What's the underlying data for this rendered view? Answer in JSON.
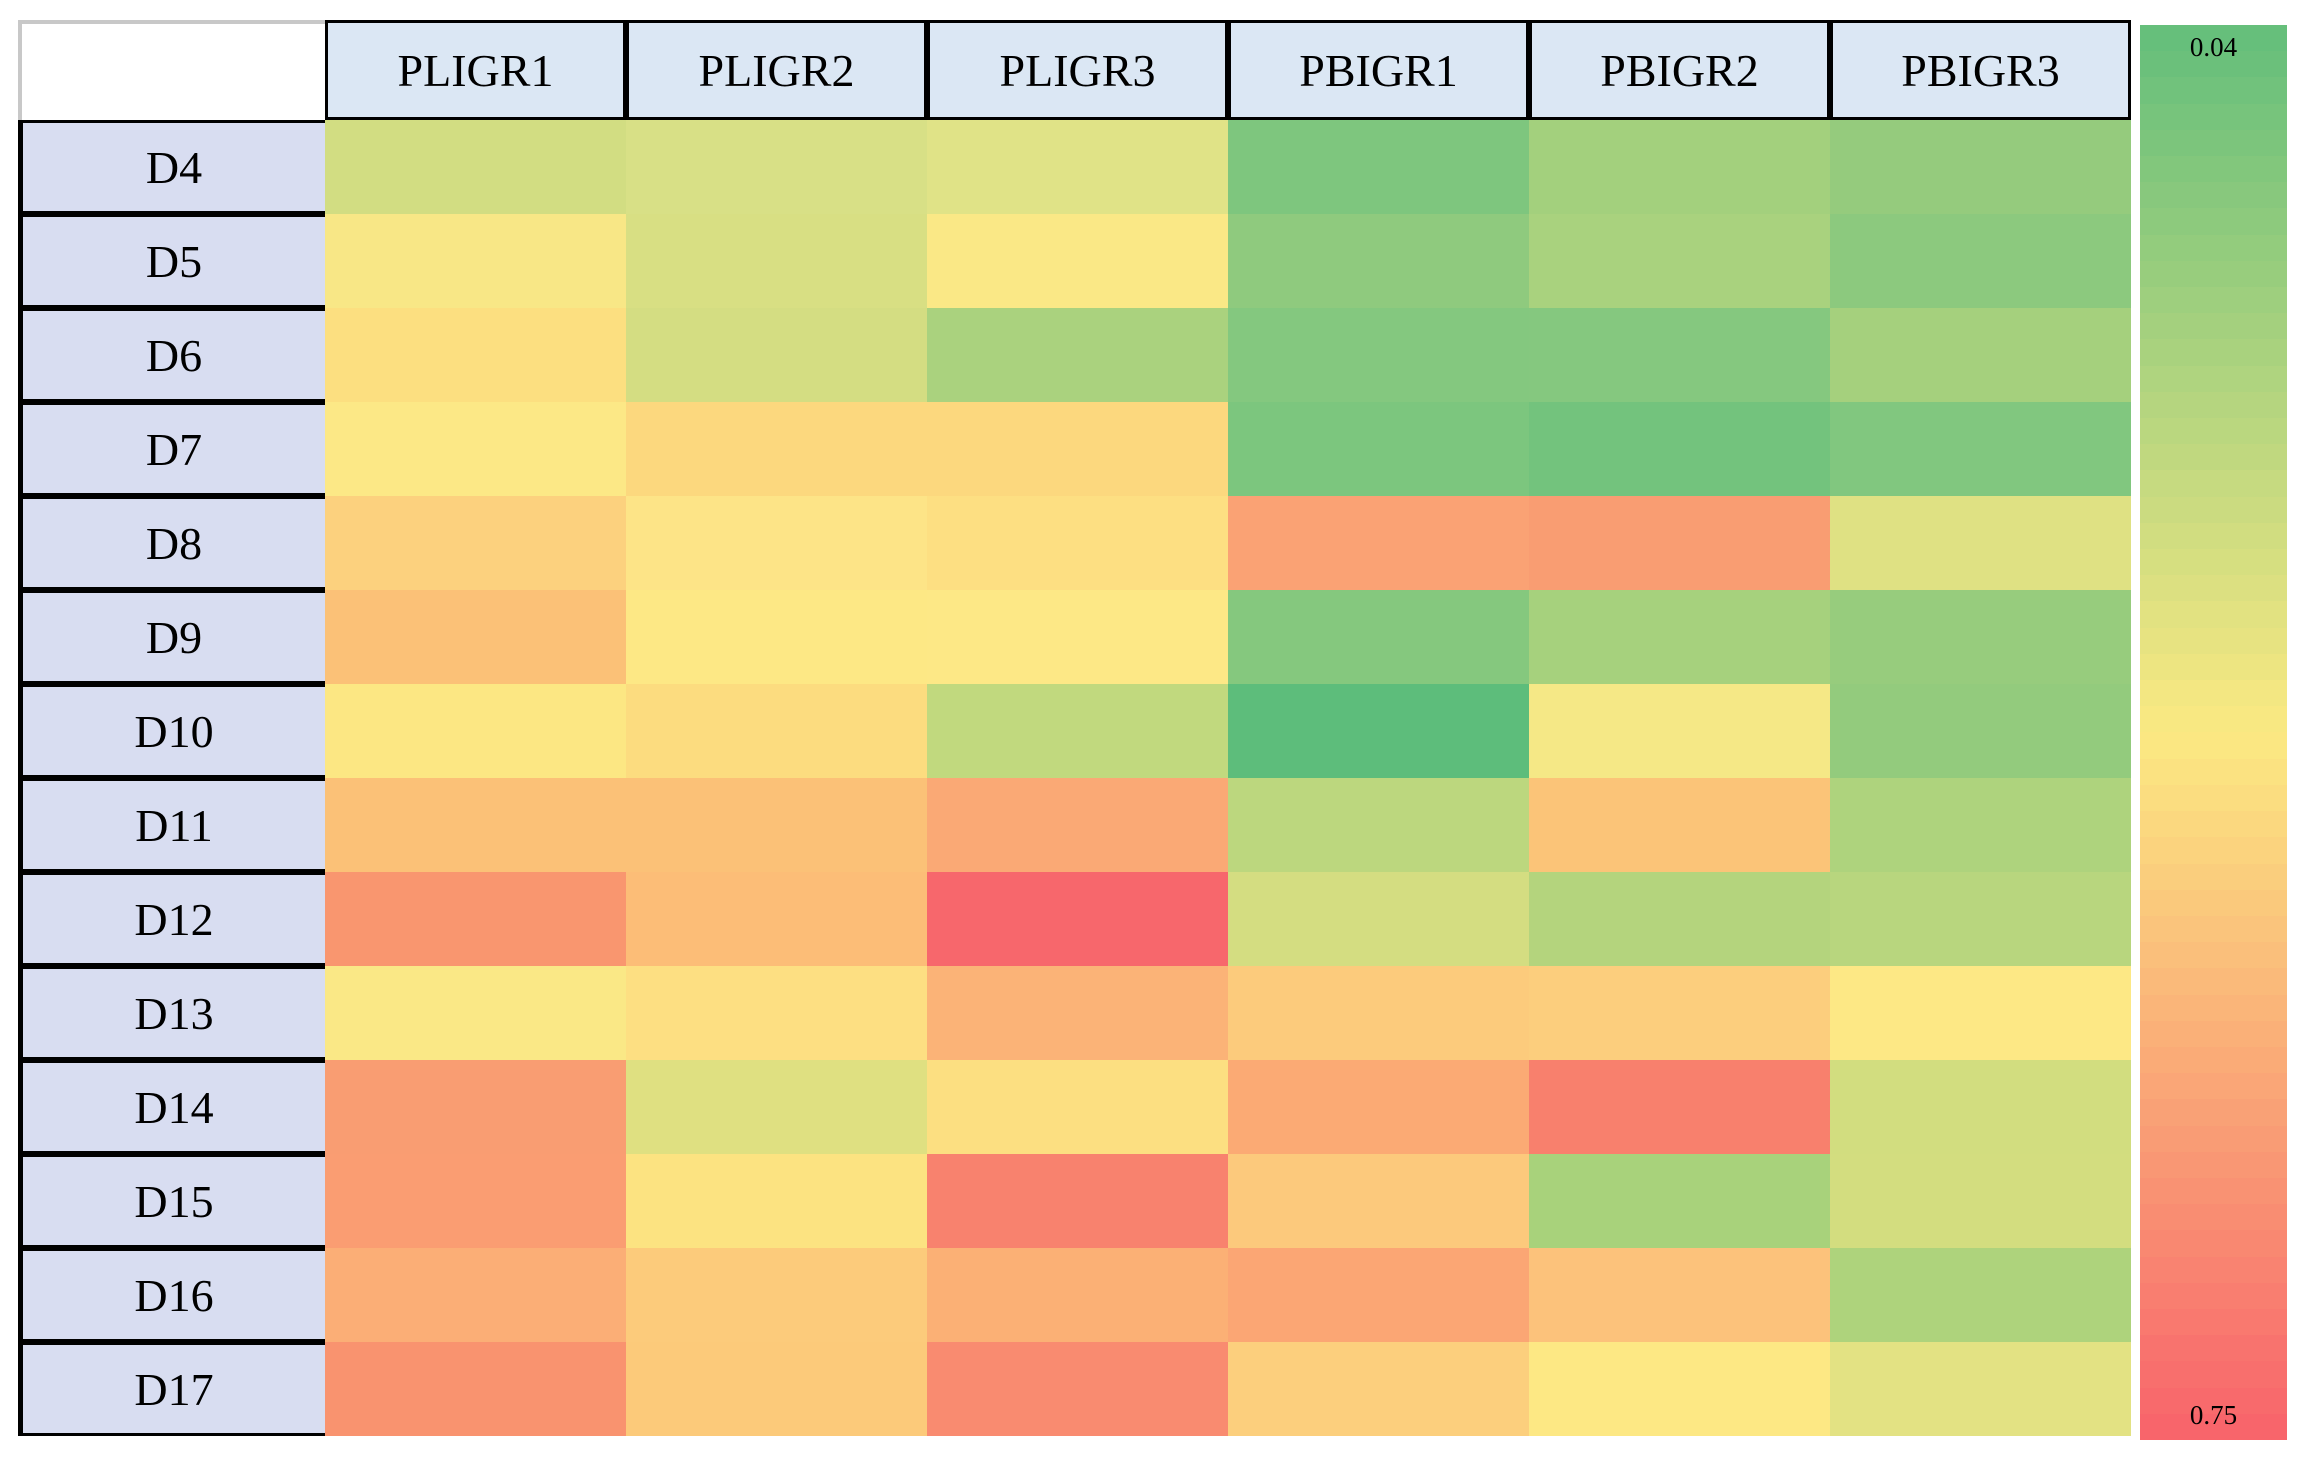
{
  "chart_data": {
    "type": "heatmap",
    "title": "",
    "columns": [
      "PLIGR1",
      "PLIGR2",
      "PLIGR3",
      "PBIGR1",
      "PBIGR2",
      "PBIGR3"
    ],
    "rows": [
      "D4",
      "D5",
      "D6",
      "D7",
      "D8",
      "D9",
      "D10",
      "D11",
      "D12",
      "D13",
      "D14",
      "D15",
      "D16",
      "D17"
    ],
    "values": [
      [
        0.29,
        0.31,
        0.32,
        0.1,
        0.19,
        0.15
      ],
      [
        0.38,
        0.31,
        0.39,
        0.14,
        0.2,
        0.13
      ],
      [
        0.43,
        0.3,
        0.2,
        0.11,
        0.12,
        0.19
      ],
      [
        0.4,
        0.45,
        0.45,
        0.1,
        0.08,
        0.11
      ],
      [
        0.47,
        0.41,
        0.43,
        0.59,
        0.61,
        0.32
      ],
      [
        0.51,
        0.4,
        0.4,
        0.12,
        0.2,
        0.16
      ],
      [
        0.4,
        0.44,
        0.25,
        0.05,
        0.37,
        0.15
      ],
      [
        0.51,
        0.51,
        0.58,
        0.24,
        0.5,
        0.21
      ],
      [
        0.63,
        0.52,
        0.74,
        0.3,
        0.23,
        0.24
      ],
      [
        0.4,
        0.43,
        0.55,
        0.48,
        0.47,
        0.4
      ],
      [
        0.61,
        0.32,
        0.43,
        0.57,
        0.69,
        0.29
      ],
      [
        0.61,
        0.42,
        0.68,
        0.48,
        0.2,
        0.29
      ],
      [
        0.56,
        0.48,
        0.56,
        0.58,
        0.51,
        0.21
      ],
      [
        0.64,
        0.49,
        0.66,
        0.47,
        0.4,
        0.33
      ]
    ],
    "cell_colors": [
      [
        "#d2dd82",
        "#d8e086",
        "#e0e387",
        "#7ec67e",
        "#a3d07d",
        "#95cb7d"
      ],
      [
        "#f8e786",
        "#d8df83",
        "#fae886",
        "#8fca7e",
        "#a9d27e",
        "#8cc97e"
      ],
      [
        "#fcdf80",
        "#d4dd82",
        "#aad27e",
        "#84c87f",
        "#85c87f",
        "#a5d07d"
      ],
      [
        "#fce886",
        "#fcd87e",
        "#fcd87e",
        "#7cc67e",
        "#73c37d",
        "#81c77f"
      ],
      [
        "#fcd17e",
        "#fde487",
        "#fddf82",
        "#faa274",
        "#f99d72",
        "#dfe183"
      ],
      [
        "#fbc177",
        "#fde885",
        "#fde886",
        "#85c87e",
        "#a6d17d",
        "#97cc7d"
      ],
      [
        "#fce783",
        "#fcdc7f",
        "#c1d97e",
        "#5dbd7b",
        "#f5e886",
        "#93cb7d"
      ],
      [
        "#fbc177",
        "#fbc177",
        "#faa975",
        "#bcd77e",
        "#fbc478",
        "#aed37d"
      ],
      [
        "#f9966f",
        "#fcbd77",
        "#f7676c",
        "#d4dd81",
        "#b4d47d",
        "#b8d67e"
      ],
      [
        "#fae886",
        "#fddf82",
        "#fbb377",
        "#fccb7c",
        "#fcce7d",
        "#fde885"
      ],
      [
        "#f99d72",
        "#dfe081",
        "#fcdf81",
        "#fbaa74",
        "#f8806d",
        "#d2dd7f"
      ],
      [
        "#fa9d72",
        "#fce381",
        "#f8826e",
        "#fcc97c",
        "#a8d27b",
        "#d3dd7f"
      ],
      [
        "#fbae76",
        "#fccb7b",
        "#fbb075",
        "#fba674",
        "#fcc27b",
        "#aed37c"
      ],
      [
        "#f9936f",
        "#fcca7a",
        "#f98b70",
        "#fccf7d",
        "#fde884",
        "#e3e283"
      ]
    ],
    "colorbar": {
      "orientation": "vertical",
      "position": "right",
      "top_label": "0.04",
      "bottom_label": "0.75",
      "min_value": 0.04,
      "max_value": 0.75,
      "colormap": {
        "low": "#63be7b",
        "mid": "#fbe982",
        "high": "#f8626b"
      },
      "steps": 54
    },
    "styles": {
      "header_bg": "#dbe7f4",
      "row_label_bg": "#d8ddf1",
      "border_color": "#000000",
      "corner_border_color": "#c8c8c8",
      "text_color": "#000000"
    },
    "grid": false,
    "legend_position": "right"
  }
}
